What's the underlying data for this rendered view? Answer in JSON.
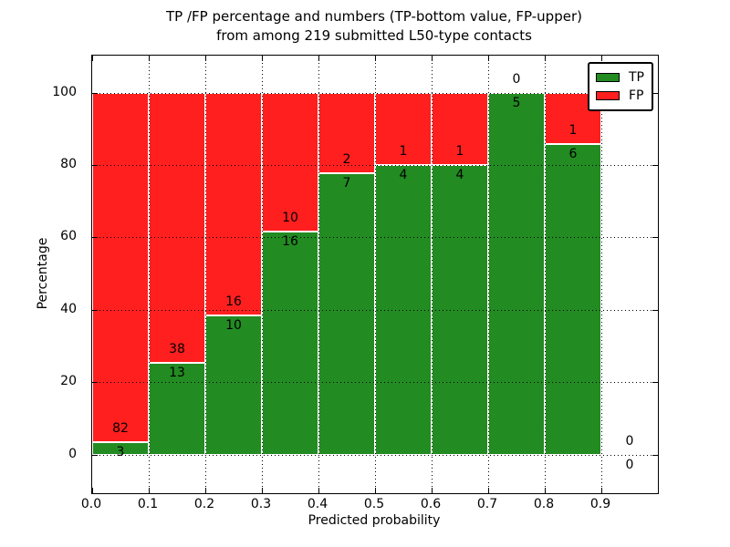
{
  "title": {
    "line1": "TP /FP percentage and numbers (TP-bottom value, FP-upper)",
    "line2": "from among 219 submitted L50-type contacts"
  },
  "axes": {
    "xlabel": "Predicted probability",
    "ylabel": "Percentage",
    "x_tick_labels": [
      "0.0",
      "0.1",
      "0.2",
      "0.3",
      "0.4",
      "0.5",
      "0.6",
      "0.7",
      "0.8",
      "0.9"
    ],
    "y_tick_labels": [
      "0",
      "20",
      "40",
      "60",
      "80",
      "100"
    ]
  },
  "legend": {
    "items": [
      {
        "label": "TP",
        "color": "#228b22"
      },
      {
        "label": "FP",
        "color": "#ff1f1f"
      }
    ]
  },
  "colors": {
    "tp": "#228b22",
    "fp": "#ff1f1f",
    "grid": "#000000",
    "bar_edge": "#ffffff"
  },
  "chart_data": {
    "type": "bar",
    "stacked": true,
    "title": "TP /FP percentage and numbers (TP-bottom value, FP-upper) from among 219 submitted L50-type contacts",
    "xlabel": "Predicted probability",
    "ylabel": "Percentage",
    "xlim": [
      0,
      1.0
    ],
    "ylim": [
      -10.6,
      110.2
    ],
    "grid": true,
    "grid_style": "dotted",
    "legend_position": "upper right",
    "total_contacts": 219,
    "bin_width": 0.1,
    "series": [
      {
        "name": "TP",
        "color": "#228b22",
        "position": "bottom"
      },
      {
        "name": "FP",
        "color": "#ff1f1f",
        "position": "top"
      }
    ],
    "bins": [
      {
        "x0": 0.0,
        "x1": 0.1,
        "tp": 3,
        "fp": 82,
        "tp_pct": 3.53,
        "fp_pct": 96.47
      },
      {
        "x0": 0.1,
        "x1": 0.2,
        "tp": 13,
        "fp": 38,
        "tp_pct": 25.49,
        "fp_pct": 74.51
      },
      {
        "x0": 0.2,
        "x1": 0.3,
        "tp": 10,
        "fp": 16,
        "tp_pct": 38.46,
        "fp_pct": 61.54
      },
      {
        "x0": 0.3,
        "x1": 0.4,
        "tp": 16,
        "fp": 10,
        "tp_pct": 61.54,
        "fp_pct": 38.46
      },
      {
        "x0": 0.4,
        "x1": 0.5,
        "tp": 7,
        "fp": 2,
        "tp_pct": 77.78,
        "fp_pct": 22.22
      },
      {
        "x0": 0.5,
        "x1": 0.6,
        "tp": 4,
        "fp": 1,
        "tp_pct": 80.0,
        "fp_pct": 20.0
      },
      {
        "x0": 0.6,
        "x1": 0.7,
        "tp": 4,
        "fp": 1,
        "tp_pct": 80.0,
        "fp_pct": 20.0
      },
      {
        "x0": 0.7,
        "x1": 0.8,
        "tp": 5,
        "fp": 0,
        "tp_pct": 100.0,
        "fp_pct": 0.0
      },
      {
        "x0": 0.8,
        "x1": 0.9,
        "tp": 6,
        "fp": 1,
        "tp_pct": 85.71,
        "fp_pct": 14.29
      },
      {
        "x0": 0.9,
        "x1": 1.0,
        "tp": 0,
        "fp": 0,
        "tp_pct": null,
        "fp_pct": null
      }
    ]
  }
}
